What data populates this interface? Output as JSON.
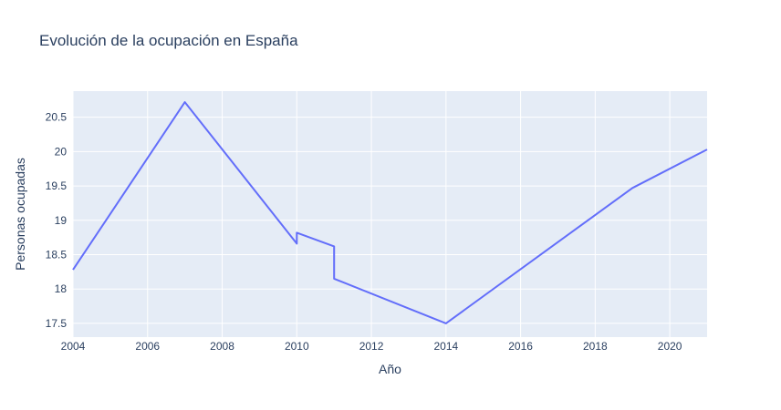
{
  "chart_data": {
    "type": "line",
    "title": "Evolución de la ocupación en España",
    "xlabel": "Año",
    "ylabel": "Personas ocupadas",
    "xlim": [
      2004,
      2021
    ],
    "ylim": [
      17.3,
      20.88
    ],
    "x_ticks": [
      2004,
      2006,
      2008,
      2010,
      2012,
      2014,
      2016,
      2018,
      2020
    ],
    "x_tick_labels": [
      "2004",
      "2006",
      "2008",
      "2010",
      "2012",
      "2014",
      "2016",
      "2018",
      "2020"
    ],
    "y_ticks": [
      17.5,
      18,
      18.5,
      19,
      19.5,
      20,
      20.5
    ],
    "y_tick_labels": [
      "17.5",
      "18",
      "18.5",
      "19",
      "19.5",
      "20",
      "20.5"
    ],
    "grid": true,
    "line_color": "#636efa",
    "plot_bg": "#e5ecf6",
    "series": [
      {
        "x": [
          2004,
          2007,
          2010,
          2010,
          2011,
          2011,
          2014,
          2019,
          2021
        ],
        "values": [
          18.28,
          20.72,
          18.66,
          18.82,
          18.62,
          18.15,
          17.5,
          19.47,
          20.03
        ]
      }
    ]
  }
}
